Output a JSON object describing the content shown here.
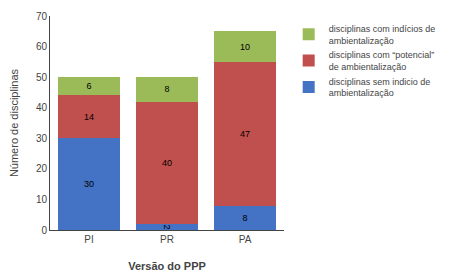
{
  "chart_data": {
    "type": "bar",
    "stacked": true,
    "data_labels": true,
    "categories": [
      "PI",
      "PR",
      "PA"
    ],
    "series": [
      {
        "name": "disciplinas sem indicio de\nambientalização",
        "color": "#4472C4",
        "values": [
          30,
          2,
          8
        ]
      },
      {
        "name": "disciplinas com “potencial”\nde ambientalização",
        "color": "#C0504D",
        "values": [
          14,
          40,
          47
        ]
      },
      {
        "name": "disciplinas com indícios de\nambientalização",
        "color": "#9BBB59",
        "values": [
          6,
          8,
          10
        ]
      }
    ],
    "xlabel": "Versão do PPP",
    "ylabel": "Número de disciplinas",
    "ylim": [
      0,
      70
    ],
    "yticks": [
      0,
      10,
      20,
      30,
      40,
      50,
      60,
      70
    ],
    "grid": false,
    "legend": "right"
  }
}
